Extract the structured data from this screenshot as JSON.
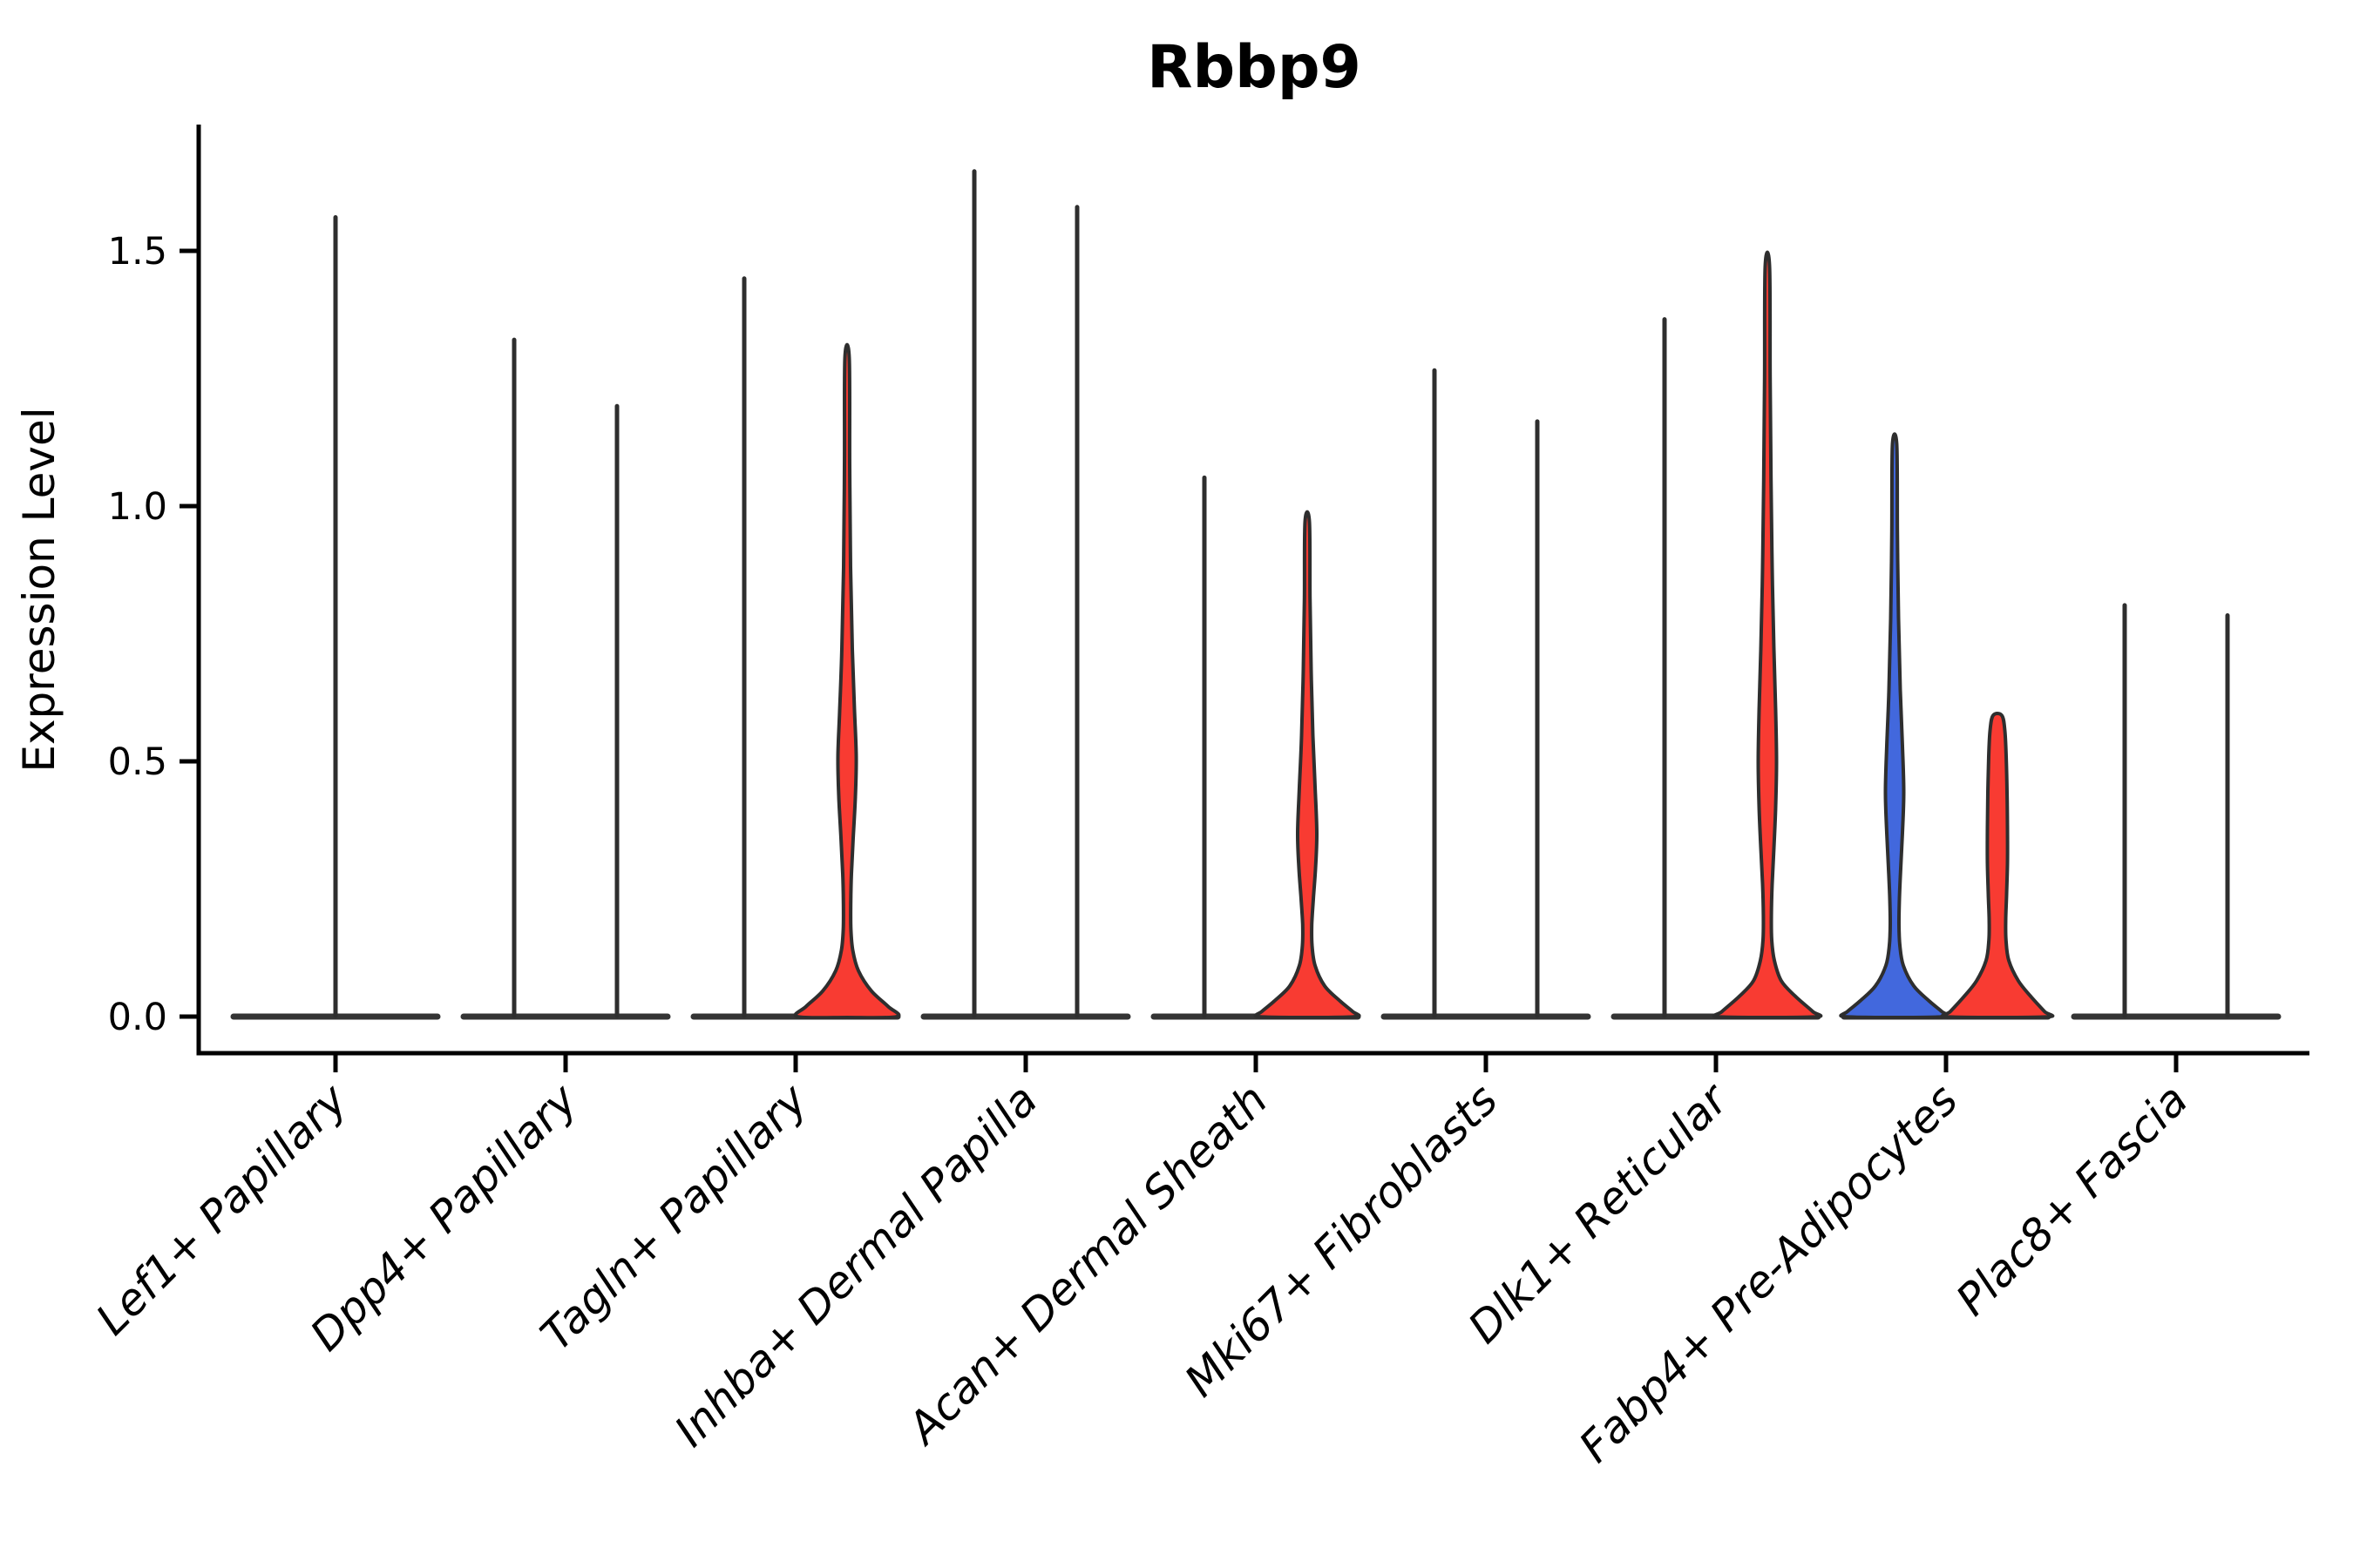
{
  "chart_data": {
    "type": "violin",
    "title": "Rbbp9",
    "ylabel": "Expression Level",
    "xlabel": "",
    "ylim": [
      -0.07,
      1.75
    ],
    "grid": false,
    "legend_position": "none",
    "y_ticks": [
      {
        "label": "0.0",
        "value": 0.0
      },
      {
        "label": "0.5",
        "value": 0.5
      },
      {
        "label": "1.0",
        "value": 1.0
      },
      {
        "label": "1.5",
        "value": 1.5
      }
    ],
    "colors": {
      "red": "#f83b32",
      "blue": "#4268dd",
      "needle": "#2e2e2e",
      "outline": "#2e2e2e",
      "baseline": "#343434",
      "axis": "#000000"
    },
    "categories": [
      {
        "label": "Lef1+ Papillary",
        "violins": [
          {
            "position": "center",
            "shape": "needle",
            "color": "needle",
            "max": 1.57
          }
        ]
      },
      {
        "label": "Dpp4+ Papillary",
        "violins": [
          {
            "position": "left",
            "shape": "needle",
            "color": "needle",
            "max": 1.33
          },
          {
            "position": "right",
            "shape": "needle",
            "color": "needle",
            "max": 1.2
          }
        ]
      },
      {
        "label": "Tagln+ Papillary",
        "violins": [
          {
            "position": "left",
            "shape": "needle",
            "color": "needle",
            "max": 1.45
          },
          {
            "position": "right",
            "shape": "violin",
            "color": "red",
            "max": 1.29,
            "profile": [
              [
                1.29,
                2.5
              ],
              [
                1.08,
                3
              ],
              [
                0.88,
                4
              ],
              [
                0.72,
                6
              ],
              [
                0.6,
                8.5
              ],
              [
                0.51,
                10.5
              ],
              [
                0.43,
                9.5
              ],
              [
                0.35,
                7
              ],
              [
                0.28,
                5
              ],
              [
                0.22,
                4.2
              ],
              [
                0.17,
                4.4
              ],
              [
                0.13,
                6.5
              ],
              [
                0.09,
                13
              ],
              [
                0.05,
                28
              ],
              [
                0.02,
                47
              ],
              [
                0,
                57
              ]
            ]
          }
        ]
      },
      {
        "label": "Inhba+ Dermal Papilla",
        "violins": [
          {
            "position": "left",
            "shape": "needle",
            "color": "needle",
            "max": 1.66
          },
          {
            "position": "right",
            "shape": "needle",
            "color": "needle",
            "max": 1.59
          }
        ]
      },
      {
        "label": "Acan+ Dermal Sheath",
        "violins": [
          {
            "position": "left",
            "shape": "needle",
            "color": "needle",
            "max": 1.06
          },
          {
            "position": "right",
            "shape": "violin",
            "color": "red",
            "max": 0.97,
            "profile": [
              [
                0.97,
                2.5
              ],
              [
                0.82,
                3.2
              ],
              [
                0.68,
                4.5
              ],
              [
                0.55,
                6.5
              ],
              [
                0.45,
                9
              ],
              [
                0.36,
                11
              ],
              [
                0.29,
                9.5
              ],
              [
                0.23,
                7
              ],
              [
                0.18,
                5.2
              ],
              [
                0.14,
                5.5
              ],
              [
                0.1,
                9
              ],
              [
                0.06,
                20
              ],
              [
                0.03,
                38
              ],
              [
                0.01,
                52
              ],
              [
                0,
                56
              ]
            ]
          }
        ]
      },
      {
        "label": "Mki67+ Fibroblasts",
        "violins": [
          {
            "position": "left",
            "shape": "needle",
            "color": "needle",
            "max": 1.27
          },
          {
            "position": "right",
            "shape": "needle",
            "color": "needle",
            "max": 1.17
          }
        ]
      },
      {
        "label": "Dlk1+ Reticular",
        "violins": [
          {
            "position": "left",
            "shape": "needle",
            "color": "needle",
            "max": 1.37
          },
          {
            "position": "right",
            "shape": "violin",
            "color": "red",
            "max": 1.47,
            "profile": [
              [
                1.47,
                2.5
              ],
              [
                1.25,
                3.2
              ],
              [
                1.05,
                4.2
              ],
              [
                0.88,
                5.5
              ],
              [
                0.72,
                7.5
              ],
              [
                0.6,
                9.5
              ],
              [
                0.5,
                10.5
              ],
              [
                0.41,
                9.5
              ],
              [
                0.33,
                7.5
              ],
              [
                0.26,
                5.5
              ],
              [
                0.2,
                4.6
              ],
              [
                0.15,
                5
              ],
              [
                0.11,
                8
              ],
              [
                0.07,
                16
              ],
              [
                0.04,
                32
              ],
              [
                0.01,
                52
              ],
              [
                0,
                58
              ]
            ]
          }
        ]
      },
      {
        "label": "Fabp4+ Pre-Adipocytes",
        "violins": [
          {
            "position": "left",
            "shape": "violin",
            "color": "blue",
            "max": 1.12,
            "profile": [
              [
                1.12,
                2.5
              ],
              [
                0.95,
                3.2
              ],
              [
                0.78,
                4.5
              ],
              [
                0.64,
                6.5
              ],
              [
                0.53,
                9
              ],
              [
                0.44,
                10.5
              ],
              [
                0.36,
                9
              ],
              [
                0.29,
                7
              ],
              [
                0.23,
                5.5
              ],
              [
                0.18,
                5
              ],
              [
                0.14,
                6
              ],
              [
                0.1,
                10
              ],
              [
                0.06,
                22
              ],
              [
                0.03,
                40
              ],
              [
                0.01,
                54
              ],
              [
                0,
                58
              ]
            ],
            "needle_to": null
          },
          {
            "position": "right",
            "shape": "violin",
            "color": "red",
            "max": 0.59,
            "profile": [
              [
                0.59,
                5
              ],
              [
                0.56,
                8.5
              ],
              [
                0.51,
                10
              ],
              [
                0.44,
                11
              ],
              [
                0.37,
                11.5
              ],
              [
                0.3,
                11.5
              ],
              [
                0.24,
                10.5
              ],
              [
                0.19,
                9.5
              ],
              [
                0.15,
                9.8
              ],
              [
                0.11,
                13
              ],
              [
                0.07,
                24
              ],
              [
                0.04,
                38
              ],
              [
                0.01,
                54
              ],
              [
                0,
                60
              ]
            ]
          }
        ]
      },
      {
        "label": "Plac8+ Fascia",
        "violins": [
          {
            "position": "left",
            "shape": "needle",
            "color": "needle",
            "max": 0.81
          },
          {
            "position": "right",
            "shape": "needle",
            "color": "needle",
            "max": 0.79
          }
        ]
      }
    ]
  }
}
